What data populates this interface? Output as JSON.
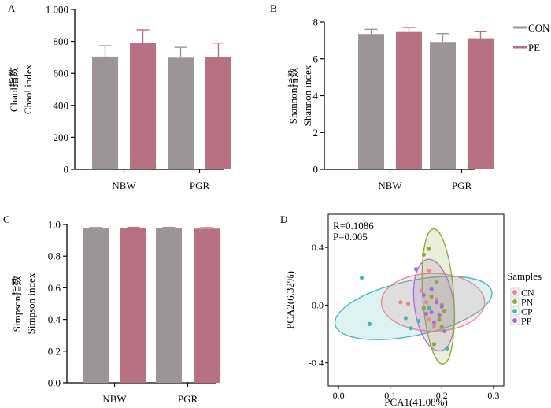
{
  "colors": {
    "con": "#9c9496",
    "pe": "#b87083",
    "cn": "#e8878c",
    "pn": "#8ea832",
    "cp": "#45b5b8",
    "pp": "#a96fd9"
  },
  "chart_data": [
    {
      "panel": "A",
      "type": "bar",
      "categories": [
        "NBW",
        "PGR"
      ],
      "ylabel_lines": [
        "Chaol指数",
        "Chaol index"
      ],
      "ylim": [
        0,
        1000
      ],
      "yticks": [
        0,
        200,
        400,
        600,
        800,
        1000
      ],
      "ytick_labels": [
        "0",
        "200",
        "400",
        "600",
        "800",
        "1 000"
      ],
      "series": [
        {
          "name": "CON",
          "values": [
            705,
            698
          ],
          "errors": [
            68,
            65
          ]
        },
        {
          "name": "PE",
          "values": [
            790,
            700
          ],
          "errors": [
            82,
            90
          ]
        }
      ],
      "legend": {
        "placement": "right",
        "entries": [
          "CON",
          "PE"
        ]
      }
    },
    {
      "panel": "B",
      "type": "bar",
      "categories": [
        "NBW",
        "PGR"
      ],
      "ylabel_lines": [
        "Shannon指数",
        "Shannon index"
      ],
      "ylim": [
        0,
        8
      ],
      "yticks": [
        0,
        2,
        4,
        6,
        8
      ],
      "ytick_labels": [
        "0",
        "2",
        "4",
        "6",
        "8"
      ],
      "series": [
        {
          "name": "CON",
          "values": [
            7.35,
            6.92
          ],
          "errors": [
            0.25,
            0.45
          ]
        },
        {
          "name": "PE",
          "values": [
            7.5,
            7.12
          ],
          "errors": [
            0.2,
            0.38
          ]
        }
      ]
    },
    {
      "panel": "C",
      "type": "bar",
      "categories": [
        "NBW",
        "PGR"
      ],
      "ylabel_lines": [
        "Simpson指数",
        "Simpson index"
      ],
      "ylim": [
        0,
        1.0
      ],
      "yticks": [
        0,
        0.2,
        0.4,
        0.6,
        0.8,
        1.0
      ],
      "ytick_labels": [
        "0.0",
        "0.2",
        "0.4",
        "0.6",
        "0.8",
        "1.0"
      ],
      "series": [
        {
          "name": "CON",
          "values": [
            0.975,
            0.978
          ],
          "errors": [
            0.006,
            0.004
          ]
        },
        {
          "name": "PE",
          "values": [
            0.978,
            0.974
          ],
          "errors": [
            0.004,
            0.006
          ]
        }
      ]
    },
    {
      "panel": "D",
      "type": "scatter",
      "xlabel": "PCA1(41.08%)",
      "ylabel": "PCA2(6.32%)",
      "xlim": [
        -0.02,
        0.32
      ],
      "ylim": [
        -0.56,
        0.63
      ],
      "xticks": [
        0.0,
        0.1,
        0.2,
        0.3
      ],
      "xtick_labels": [
        "0.0",
        "0.1",
        "0.2",
        "0.3"
      ],
      "yticks": [
        -0.4,
        0.0,
        0.4
      ],
      "ytick_labels": [
        "-0.4",
        "0.0",
        "0.4"
      ],
      "annotations": [
        "R=0.1086",
        "P=0.005"
      ],
      "legend": {
        "title": "Samples",
        "placement": "right",
        "entries": [
          "CN",
          "PN",
          "CP",
          "PP"
        ]
      },
      "series": [
        {
          "name": "CN",
          "points": [
            [
              0.12,
              0.02
            ],
            [
              0.135,
              0.01
            ],
            [
              0.16,
              0.1
            ],
            [
              0.17,
              0.02
            ],
            [
              0.175,
              -0.1
            ],
            [
              0.185,
              -0.15
            ],
            [
              0.19,
              0.04
            ],
            [
              0.2,
              0.0
            ],
            [
              0.175,
              0.24
            ]
          ],
          "ellipse": {
            "cx": 0.183,
            "cy": 0.02,
            "rx": 0.1,
            "ry": 0.2,
            "angle": 0
          }
        },
        {
          "name": "PN",
          "points": [
            [
              0.165,
              0.35
            ],
            [
              0.175,
              0.39
            ],
            [
              0.19,
              0.16
            ],
            [
              0.18,
              0.06
            ],
            [
              0.2,
              0.0
            ],
            [
              0.195,
              -0.1
            ],
            [
              0.185,
              -0.27
            ],
            [
              0.2,
              -0.15
            ],
            [
              0.165,
              -0.02
            ],
            [
              0.205,
              -0.04
            ]
          ],
          "ellipse": {
            "cx": 0.193,
            "cy": 0.06,
            "rx": 0.03,
            "ry": 0.47,
            "angle": -4
          }
        },
        {
          "name": "CP",
          "points": [
            [
              0.045,
              0.19
            ],
            [
              0.06,
              -0.13
            ],
            [
              0.14,
              -0.16
            ],
            [
              0.13,
              -0.09
            ],
            [
              0.175,
              -0.02
            ],
            [
              0.155,
              -0.11
            ],
            [
              0.21,
              -0.3
            ]
          ],
          "ellipse": {
            "cx": 0.145,
            "cy": -0.02,
            "rx": 0.155,
            "ry": 0.19,
            "angle": -12
          }
        },
        {
          "name": "PP",
          "points": [
            [
              0.15,
              0.25
            ],
            [
              0.18,
              0.11
            ],
            [
              0.18,
              -0.05
            ],
            [
              0.195,
              -0.07
            ],
            [
              0.2,
              -0.01
            ],
            [
              0.185,
              -0.12
            ],
            [
              0.205,
              -0.18
            ],
            [
              0.17,
              -0.06
            ],
            [
              0.165,
              0.07
            ],
            [
              0.19,
              0.02
            ]
          ],
          "ellipse": {
            "cx": 0.185,
            "cy": 0.0,
            "rx": 0.038,
            "ry": 0.32,
            "angle": -8
          }
        }
      ]
    }
  ]
}
